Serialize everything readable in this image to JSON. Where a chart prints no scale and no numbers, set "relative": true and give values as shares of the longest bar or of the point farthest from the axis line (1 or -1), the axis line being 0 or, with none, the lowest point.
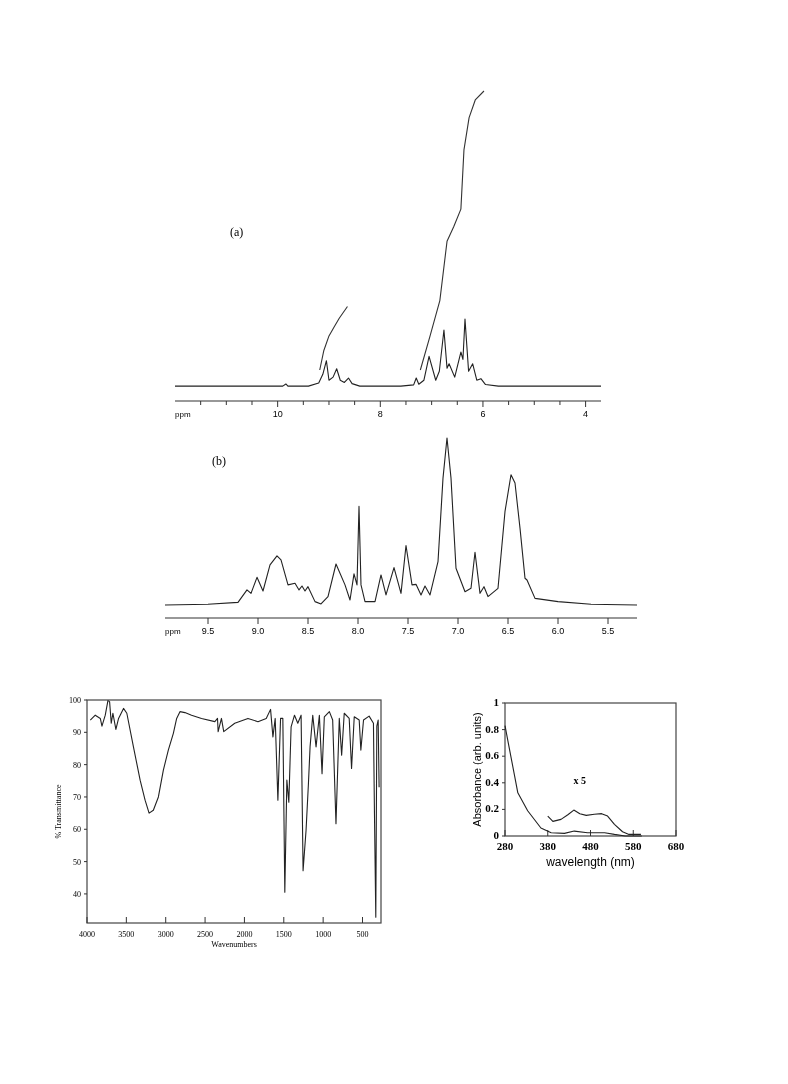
{
  "chart_data": [
    {
      "type": "line",
      "title": "(a)",
      "xlabel": "ppm",
      "xlim": [
        12,
        3.7
      ],
      "relative": true,
      "tick_labels": "x",
      "xticks": [
        {
          "value": 11.5,
          "label": null
        },
        {
          "value": 11,
          "label": null
        },
        {
          "value": 10.5,
          "label": null
        },
        10,
        {
          "value": 9.5,
          "label": null
        },
        {
          "value": 9,
          "label": null
        },
        {
          "value": 8.5,
          "label": null
        },
        8,
        {
          "value": 7.5,
          "label": null
        },
        {
          "value": 7,
          "label": null
        },
        {
          "value": 6.5,
          "label": null
        },
        6,
        {
          "value": 5.5,
          "label": null
        },
        {
          "value": 5,
          "label": null
        },
        {
          "value": 4.5,
          "label": null
        },
        4
      ],
      "series": [
        {
          "color": "#222222",
          "x": [
            12,
            10.2,
            9.9,
            9.84,
            9.8,
            9.4,
            9.2,
            9.12,
            9.05,
            9.0,
            8.92,
            8.85,
            8.78,
            8.7,
            8.62,
            8.55,
            8.4,
            7.6,
            7.35,
            7.3,
            7.25,
            7.15,
            7.05,
            6.92,
            6.85,
            6.76,
            6.7,
            6.66,
            6.55,
            6.43,
            6.39,
            6.35,
            6.28,
            6.2,
            6.12,
            6.04,
            5.95,
            5.7,
            3.7
          ],
          "values": [
            0.048,
            0.048,
            0.048,
            0.055,
            0.048,
            0.048,
            0.058,
            0.086,
            0.13,
            0.067,
            0.077,
            0.104,
            0.067,
            0.06,
            0.074,
            0.056,
            0.048,
            0.048,
            0.052,
            0.074,
            0.054,
            0.067,
            0.144,
            0.067,
            0.096,
            0.229,
            0.106,
            0.12,
            0.077,
            0.158,
            0.134,
            0.264,
            0.096,
            0.12,
            0.067,
            0.072,
            0.053,
            0.048,
            0.048
          ]
        },
        {
          "color": "#333333",
          "x": [
            9.18,
            9.1,
            9.0,
            8.9,
            8.8,
            8.64
          ],
          "values": [
            0.1,
            0.163,
            0.21,
            0.239,
            0.267,
            0.305
          ]
        },
        {
          "color": "#333333",
          "x": [
            7.22,
            7.03,
            6.84,
            6.7,
            6.57,
            6.43,
            6.37,
            6.27,
            6.15,
            5.98
          ],
          "values": [
            0.1,
            0.21,
            0.324,
            0.515,
            0.562,
            0.619,
            0.81,
            0.914,
            0.971,
            1
          ]
        }
      ]
    },
    {
      "type": "line",
      "title": "(b)",
      "xlabel": "ppm",
      "xlim": [
        9.93,
        5.21
      ],
      "relative": true,
      "tick_labels": "x",
      "xticks": [
        9.5,
        {
          "value": 9,
          "label": "9.0"
        },
        8.5,
        {
          "value": 8,
          "label": "8.0"
        },
        7.5,
        {
          "value": 7,
          "label": "7.0"
        },
        6.5,
        {
          "value": 6,
          "label": "6.0"
        },
        5.5
      ],
      "series": [
        {
          "color": "#222222",
          "x": [
            9.93,
            9.5,
            9.2,
            9.11,
            9.07,
            9.01,
            8.95,
            8.88,
            8.81,
            8.77,
            8.7,
            8.63,
            8.59,
            8.56,
            8.53,
            8.5,
            8.43,
            8.37,
            8.3,
            8.22,
            8.13,
            8.08,
            8.04,
            8.01,
            7.99,
            7.97,
            7.93,
            7.83,
            7.77,
            7.72,
            7.64,
            7.57,
            7.52,
            7.46,
            7.42,
            7.37,
            7.33,
            7.28,
            7.2,
            7.15,
            7.11,
            7.07,
            7.02,
            6.93,
            6.87,
            6.83,
            6.78,
            6.74,
            6.7,
            6.6,
            6.53,
            6.47,
            6.43,
            6.38,
            6.33,
            6.31,
            6.23,
            6.0,
            5.67,
            5.21
          ],
          "values": [
            0.072,
            0.076,
            0.087,
            0.156,
            0.137,
            0.226,
            0.15,
            0.295,
            0.345,
            0.323,
            0.184,
            0.193,
            0.156,
            0.178,
            0.15,
            0.174,
            0.091,
            0.078,
            0.119,
            0.3,
            0.184,
            0.1,
            0.245,
            0.184,
            0.62,
            0.184,
            0.091,
            0.091,
            0.239,
            0.128,
            0.28,
            0.137,
            0.403,
            0.184,
            0.187,
            0.128,
            0.178,
            0.128,
            0.313,
            0.777,
            1,
            0.777,
            0.276,
            0.146,
            0.165,
            0.365,
            0.137,
            0.174,
            0.119,
            0.165,
            0.592,
            0.796,
            0.75,
            0.499,
            0.221,
            0.211,
            0.109,
            0.091,
            0.076,
            0.072
          ]
        }
      ]
    },
    {
      "type": "line",
      "xlabel": "Wavenumbers",
      "ylabel": "% Transmittance",
      "xlim": [
        4000,
        265
      ],
      "ylim": [
        31,
        100
      ],
      "xticks": [
        4000,
        3500,
        3000,
        2500,
        2000,
        1500,
        1000,
        500
      ],
      "yticks": [
        40,
        50,
        60,
        70,
        80,
        90,
        100
      ],
      "series": [
        {
          "color": "#222222",
          "x": [
            3958,
            3895,
            3831,
            3810,
            3768,
            3734,
            3713,
            3692,
            3671,
            3633,
            3599,
            3536,
            3494,
            3410,
            3325,
            3262,
            3211,
            3157,
            3093,
            3030,
            2967,
            2903,
            2861,
            2819,
            2756,
            2672,
            2545,
            2376,
            2342,
            2334,
            2292,
            2263,
            2123,
            1955,
            1828,
            1723,
            1668,
            1638,
            1609,
            1575,
            1541,
            1512,
            1487,
            1461,
            1436,
            1407,
            1364,
            1322,
            1280,
            1255,
            1217,
            1187,
            1166,
            1132,
            1090,
            1048,
            1014,
            985,
            921,
            879,
            837,
            795,
            765,
            732,
            669,
            639,
            605,
            542,
            521,
            487,
            416,
            361,
            348,
            331,
            318,
            301,
            289
          ],
          "values": [
            93.8,
            95.3,
            94.3,
            91.9,
            95.3,
            99.8,
            99.5,
            92.8,
            95.9,
            90.9,
            94.3,
            97.4,
            95.9,
            85.5,
            75.2,
            69,
            65,
            65.9,
            70,
            78.3,
            84.5,
            89.7,
            94.3,
            96.4,
            96.1,
            95.3,
            94.3,
            93.3,
            94.3,
            90.2,
            94.3,
            90.2,
            92.8,
            94.3,
            93.3,
            94.3,
            97.1,
            88.6,
            94.3,
            69,
            94.3,
            94.3,
            40.5,
            75.2,
            68.4,
            91.7,
            95.3,
            92.8,
            95.3,
            47.2,
            59.7,
            74.1,
            85.5,
            95.3,
            85.5,
            95.3,
            77.2,
            94.8,
            96.4,
            93.8,
            61.7,
            94.3,
            82.9,
            95.9,
            94.3,
            78.8,
            94.8,
            93.8,
            84.5,
            93.8,
            95,
            92.8,
            64.8,
            32.8,
            91.9,
            93.8,
            73
          ]
        }
      ]
    },
    {
      "type": "line",
      "xlabel": "wavelength (nm)",
      "ylabel": "Absorbance (arb. units)",
      "xlim": [
        280,
        680
      ],
      "ylim": [
        0,
        1
      ],
      "xticks": [
        280,
        380,
        480,
        580,
        680
      ],
      "yticks": [
        0,
        0.2,
        0.4,
        0.6,
        0.8,
        1
      ],
      "series": [
        {
          "color": "#222222",
          "x": [
            280,
            290,
            302,
            310,
            333,
            364,
            388,
            419,
            442,
            473,
            513,
            536,
            561,
            600
          ],
          "values": [
            0.83,
            0.66,
            0.46,
            0.325,
            0.19,
            0.06,
            0.025,
            0.02,
            0.037,
            0.025,
            0.025,
            0.012,
            0,
            0
          ]
        },
        {
          "name": "x 5",
          "color": "#222222",
          "x": [
            380,
            392,
            411,
            427,
            441,
            455,
            470,
            489,
            506,
            520,
            536,
            555,
            570,
            598
          ],
          "values": [
            0.15,
            0.11,
            0.125,
            0.16,
            0.195,
            0.168,
            0.155,
            0.163,
            0.168,
            0.15,
            0.088,
            0.032,
            0.012,
            0.012
          ]
        }
      ]
    }
  ]
}
